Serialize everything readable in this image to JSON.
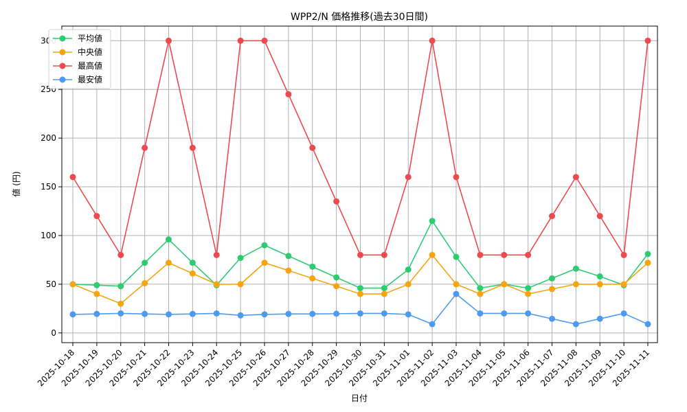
{
  "chart_data": {
    "type": "line",
    "title": "WPP2/N 価格推移(過去30日間)",
    "xlabel": "日付",
    "ylabel": "値 (円)",
    "ylim": [
      -10,
      315
    ],
    "yticks": [
      0,
      50,
      100,
      150,
      200,
      250,
      300
    ],
    "grid": true,
    "legend_position": "top-left",
    "categories": [
      "2025-10-18",
      "2025-10-19",
      "2025-10-20",
      "2025-10-21",
      "2025-10-22",
      "2025-10-23",
      "2025-10-24",
      "2025-10-25",
      "2025-10-26",
      "2025-10-27",
      "2025-10-28",
      "2025-10-29",
      "2025-10-30",
      "2025-10-31",
      "2025-11-01",
      "2025-11-02",
      "2025-11-03",
      "2025-11-04",
      "2025-11-05",
      "2025-11-06",
      "2025-11-07",
      "2025-11-08",
      "2025-11-09",
      "2025-11-10",
      "2025-11-11"
    ],
    "series": [
      {
        "name": "平均値",
        "color": "#2ecc71",
        "values": [
          50,
          49,
          48,
          72,
          96,
          72,
          49,
          77,
          90,
          79,
          68,
          57,
          46,
          46,
          65,
          115,
          78,
          46,
          50,
          46,
          56,
          66,
          58,
          49,
          81
        ]
      },
      {
        "name": "中央値",
        "color": "#f5a511",
        "values": [
          50,
          40,
          30,
          51,
          72,
          61,
          50,
          50,
          72,
          64,
          56,
          48,
          40,
          40,
          50,
          80,
          50,
          40,
          50,
          40,
          45,
          50,
          50,
          50,
          72
        ]
      },
      {
        "name": "最高値",
        "color": "#ec4a4e",
        "values": [
          160,
          120,
          80,
          190,
          300,
          190,
          80,
          300,
          300,
          245,
          190,
          135,
          80,
          80,
          160,
          300,
          160,
          80,
          80,
          80,
          120,
          160,
          120,
          80,
          300
        ]
      },
      {
        "name": "最安値",
        "color": "#4c9bf0",
        "values": [
          19,
          19.5,
          20,
          19.5,
          19,
          19.5,
          20,
          18,
          19,
          19.5,
          19.5,
          19.7,
          20,
          20,
          19,
          9,
          40,
          20,
          20,
          20,
          14.5,
          9,
          14.5,
          20,
          9
        ]
      }
    ]
  }
}
